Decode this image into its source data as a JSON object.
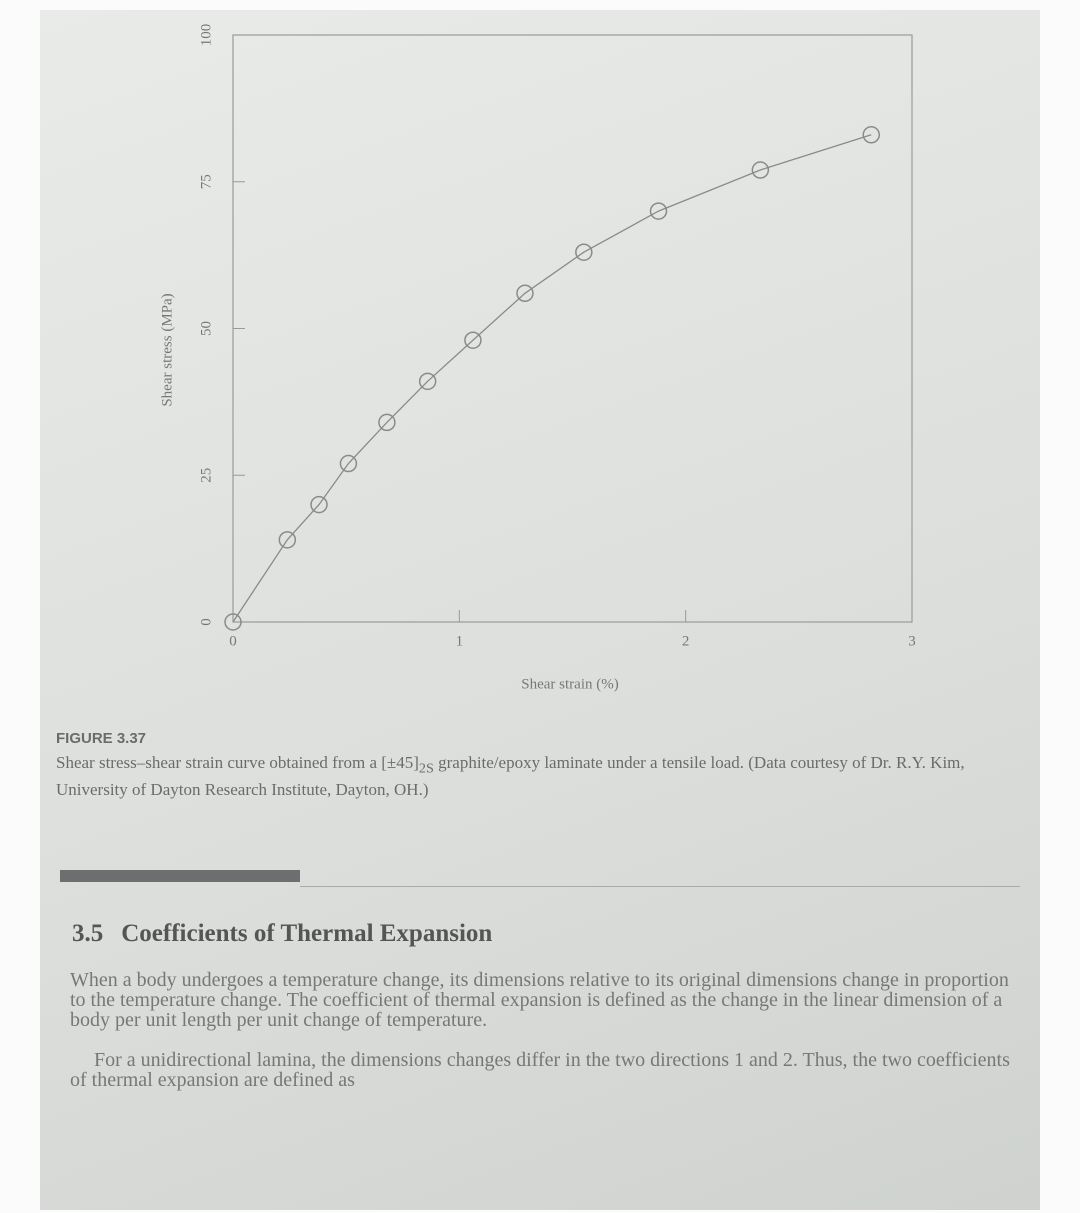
{
  "chart_data": {
    "type": "line",
    "x": [
      0,
      0.24,
      0.38,
      0.51,
      0.68,
      0.86,
      1.06,
      1.29,
      1.55,
      1.88,
      2.33,
      2.82
    ],
    "values": [
      0,
      14,
      20,
      27,
      34,
      41,
      48,
      56,
      63,
      70,
      77,
      83
    ],
    "xlim": [
      0,
      3
    ],
    "xticks": [
      0,
      1,
      2,
      3
    ],
    "ylim": [
      0,
      100
    ],
    "yticks": [
      0,
      25,
      50,
      75,
      100
    ],
    "xlabel": "Shear strain (%)",
    "ylabel": "Shear stress (MPa)",
    "color": "#8a8a8a",
    "marker": "circle"
  },
  "figure": {
    "label": "FIGURE 3.37",
    "caption_before": "Shear stress–shear strain curve obtained from a [±45]",
    "caption_sub": "2S",
    "caption_after": " graphite/epoxy laminate under a tensile load. (Data courtesy of Dr. R.Y. Kim, University of Dayton Research Institute, Dayton, OH.)"
  },
  "section": {
    "number": "3.5",
    "title": "Coefficients of Thermal Expansion",
    "paragraphs": [
      "When a body undergoes a temperature change, its dimensions relative to its original dimensions change in proportion to the temperature change. The coefficient of thermal expansion is defined as the change in the linear dimension of a body per unit length per unit change of temperature.",
      "For a unidirectional lamina, the dimensions changes differ in the two directions 1 and 2. Thus, the two coefficients of thermal expansion are defined as"
    ]
  }
}
